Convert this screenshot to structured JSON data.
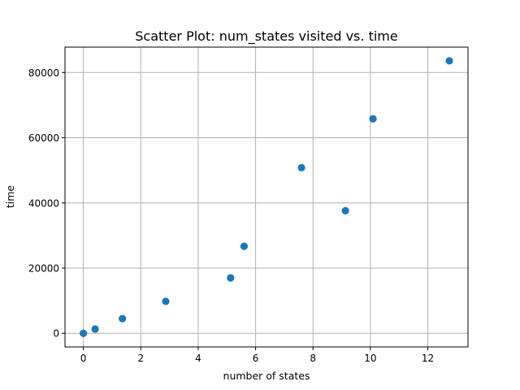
{
  "chart_data": {
    "type": "scatter",
    "title": "Scatter Plot: num_states visited vs. time",
    "xlabel": "number of states",
    "ylabel": "time",
    "xlim": [
      -0.64,
      13.4
    ],
    "ylim": [
      -4180,
      87800
    ],
    "xticks": [
      0,
      2,
      4,
      6,
      8,
      10,
      12
    ],
    "yticks": [
      0,
      20000,
      40000,
      60000,
      80000
    ],
    "grid": true,
    "marker_color": "#1f77b4",
    "points": [
      {
        "x": 0.0,
        "y": 0
      },
      {
        "x": 0.41,
        "y": 1300
      },
      {
        "x": 1.36,
        "y": 4500
      },
      {
        "x": 2.87,
        "y": 9800
      },
      {
        "x": 5.13,
        "y": 17000
      },
      {
        "x": 5.6,
        "y": 26700
      },
      {
        "x": 7.6,
        "y": 50800
      },
      {
        "x": 9.13,
        "y": 37600
      },
      {
        "x": 10.09,
        "y": 65800
      },
      {
        "x": 12.75,
        "y": 83600
      }
    ]
  }
}
